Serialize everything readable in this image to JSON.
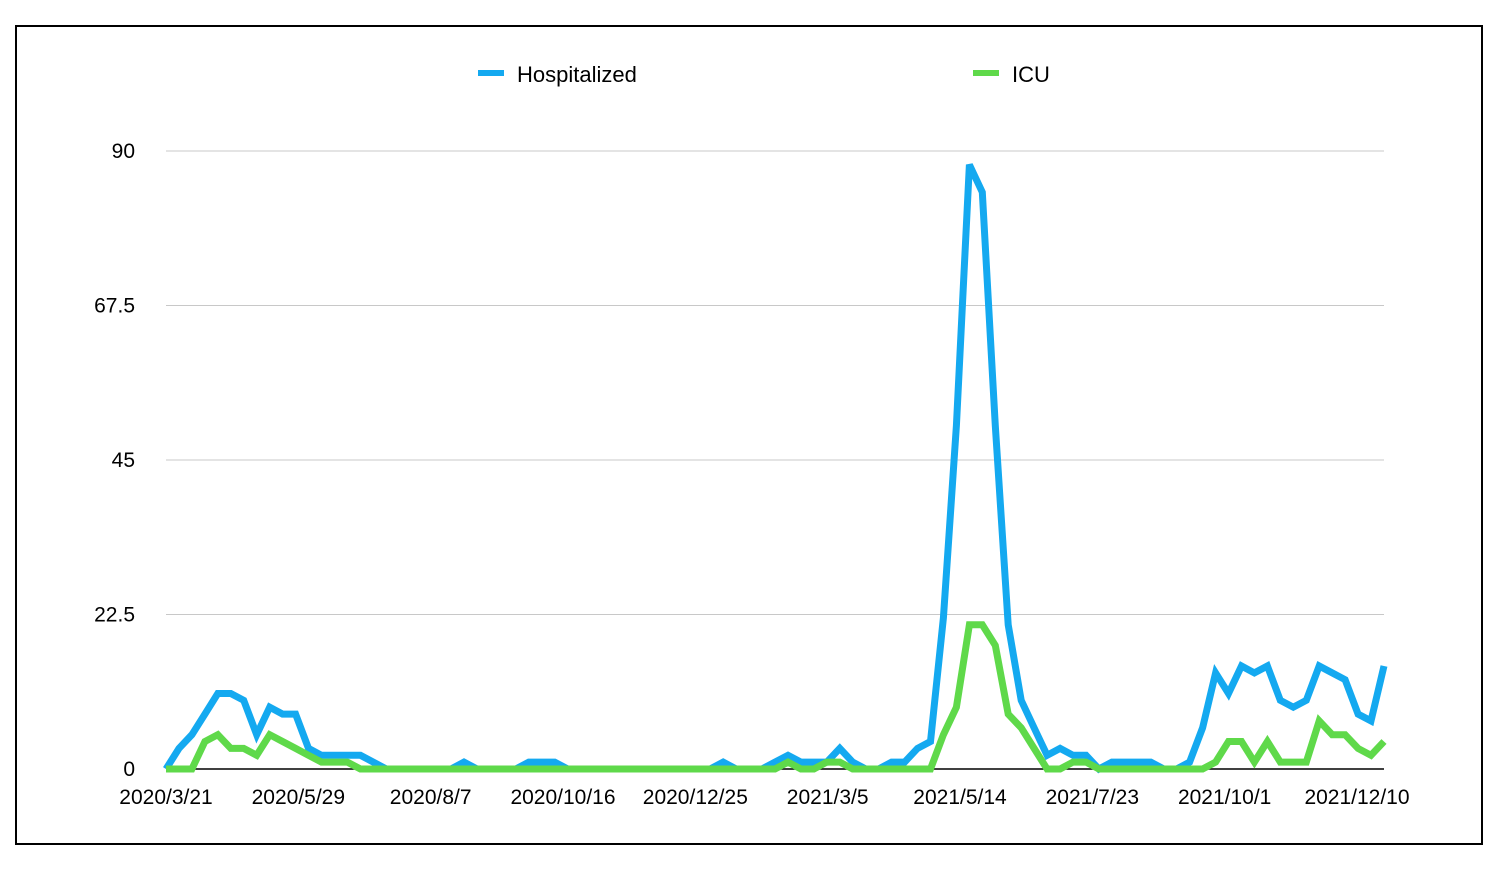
{
  "chart_data": {
    "type": "line",
    "title": "",
    "xlabel": "",
    "ylabel": "",
    "ylim": [
      0,
      90
    ],
    "yticks": [
      "0",
      "22.5",
      "45",
      "67.5",
      "90"
    ],
    "ytick_values": [
      0,
      22.5,
      45,
      67.5,
      90
    ],
    "xtick_labels": [
      "2020/3/21",
      "2020/5/29",
      "2020/8/7",
      "2020/10/16",
      "2020/12/25",
      "2021/3/5",
      "2021/5/14",
      "2021/7/23",
      "2021/10/1",
      "2021/12/10"
    ],
    "grid": "horizontal",
    "legend": "top",
    "x_start": "2020/3/21",
    "x_end": "2022/1/1",
    "series": [
      {
        "name": "Hospitalized",
        "color": "#14A9F0",
        "values": [
          0,
          3,
          5,
          8,
          11,
          11,
          10,
          5,
          9,
          8,
          8,
          3,
          2,
          2,
          2,
          2,
          1,
          0,
          0,
          0,
          0,
          0,
          0,
          1,
          0,
          0,
          0,
          0,
          1,
          1,
          1,
          0,
          0,
          0,
          0,
          0,
          0,
          0,
          0,
          0,
          0,
          0,
          0,
          1,
          0,
          0,
          0,
          1,
          2,
          1,
          1,
          1,
          3,
          1,
          0,
          0,
          1,
          1,
          3,
          4,
          22,
          50,
          88,
          84,
          50,
          21,
          10,
          6,
          2,
          3,
          2,
          2,
          0,
          1,
          1,
          1,
          1,
          0,
          0,
          1,
          6,
          14,
          11,
          15,
          14,
          15,
          10,
          9,
          10,
          15,
          14,
          13,
          8,
          7,
          15
        ]
      },
      {
        "name": "ICU",
        "color": "#5FD94A",
        "values": [
          0,
          0,
          0,
          4,
          5,
          3,
          3,
          2,
          5,
          4,
          3,
          2,
          1,
          1,
          1,
          0,
          0,
          0,
          0,
          0,
          0,
          0,
          0,
          0,
          0,
          0,
          0,
          0,
          0,
          0,
          0,
          0,
          0,
          0,
          0,
          0,
          0,
          0,
          0,
          0,
          0,
          0,
          0,
          0,
          0,
          0,
          0,
          0,
          1,
          0,
          0,
          1,
          1,
          0,
          0,
          0,
          0,
          0,
          0,
          0,
          5,
          9,
          21,
          21,
          18,
          8,
          6,
          3,
          0,
          0,
          1,
          1,
          0,
          0,
          0,
          0,
          0,
          0,
          0,
          0,
          0,
          1,
          4,
          4,
          1,
          4,
          1,
          1,
          1,
          7,
          5,
          5,
          3,
          2,
          4
        ]
      }
    ]
  }
}
